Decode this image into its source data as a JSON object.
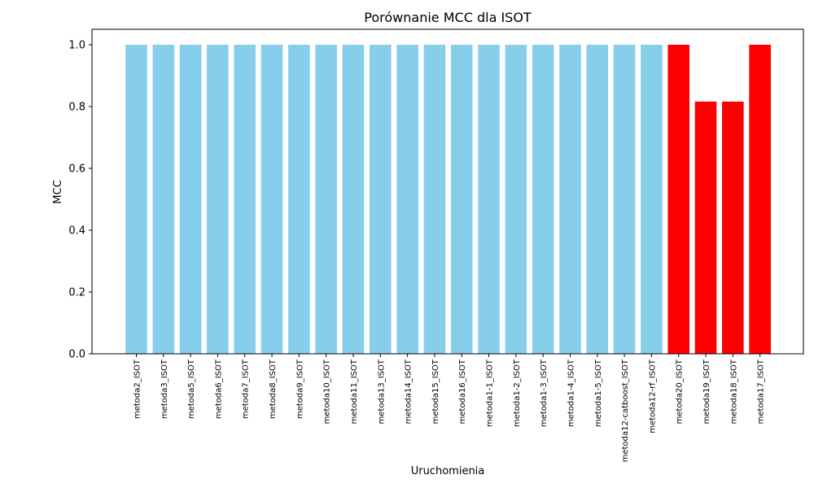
{
  "chart_data": {
    "type": "bar",
    "title": "Porównanie MCC dla ISOT",
    "xlabel": "Uruchomienia",
    "ylabel": "MCC",
    "ylim": [
      0,
      1.05
    ],
    "yticks": [
      "0.0",
      "0.2",
      "0.4",
      "0.6",
      "0.8",
      "1.0"
    ],
    "grid": false,
    "categories": [
      "metoda2_ISOT",
      "metoda3_ISOT",
      "metoda5_ISOT",
      "metoda6_ISOT",
      "metoda7_ISOT",
      "metoda8_ISOT",
      "metoda9_ISOT",
      "metoda10_ISOT",
      "metoda11_ISOT",
      "metoda13_ISOT",
      "metoda14_ISOT",
      "metoda15_ISOT",
      "metoda16_ISOT",
      "metoda1-1_ISOT",
      "metoda1-2_ISOT",
      "metoda1-3_ISOT",
      "metoda1-4_ISOT",
      "metoda1-5_ISOT",
      "metoda12-catboost_ISOT",
      "metoda12-rf_ISOT",
      "metoda20_ISOT",
      "metoda19_ISOT",
      "metoda18_ISOT",
      "metoda17_ISOT"
    ],
    "values": [
      1.0,
      1.0,
      1.0,
      1.0,
      1.0,
      1.0,
      1.0,
      1.0,
      1.0,
      1.0,
      1.0,
      1.0,
      1.0,
      1.0,
      1.0,
      1.0,
      1.0,
      1.0,
      1.0,
      1.0,
      1.0,
      0.816,
      0.816,
      1.0
    ],
    "bar_colors": [
      "#87ceeb",
      "#87ceeb",
      "#87ceeb",
      "#87ceeb",
      "#87ceeb",
      "#87ceeb",
      "#87ceeb",
      "#87ceeb",
      "#87ceeb",
      "#87ceeb",
      "#87ceeb",
      "#87ceeb",
      "#87ceeb",
      "#87ceeb",
      "#87ceeb",
      "#87ceeb",
      "#87ceeb",
      "#87ceeb",
      "#87ceeb",
      "#87ceeb",
      "#ff0000",
      "#ff0000",
      "#ff0000",
      "#ff0000"
    ]
  }
}
